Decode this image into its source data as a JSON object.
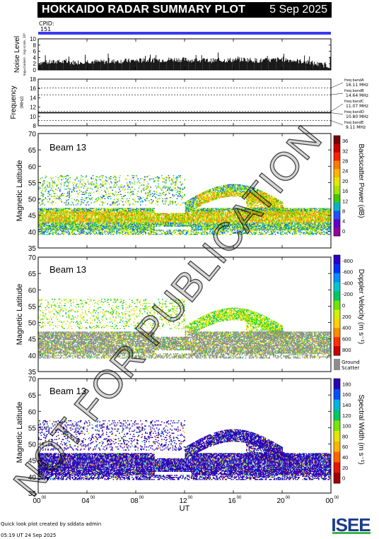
{
  "header": {
    "title": "HOKKAIDO RADAR SUMMARY PLOT",
    "date": "5 Sep 2025"
  },
  "cpid": {
    "label": "CPID:",
    "value": "151"
  },
  "watermark": "NOT FOR PUBLICATION",
  "colors": {
    "ground_scatter": "#8c8c8c",
    "cpid_bar": "#3a3af0",
    "power_scale": [
      "#7a0000",
      "#c80000",
      "#ff2000",
      "#ff7a00",
      "#ffb400",
      "#e6e600",
      "#a8e600",
      "#40c800",
      "#00b4c8",
      "#2050ff",
      "#6000c8",
      "#9600a0"
    ],
    "velocity_scale": [
      "#2a00c8",
      "#0030ff",
      "#0090ff",
      "#00c8c8",
      "#00c864",
      "#6ee600",
      "#d2f000",
      "#ffd200",
      "#ff8c00",
      "#ff3000",
      "#c80000"
    ],
    "width_scale": [
      "#2a00b4",
      "#0050ff",
      "#00b4e6",
      "#00c864",
      "#78e600",
      "#e6e600",
      "#ffb400",
      "#ff6400",
      "#e61400",
      "#a00000"
    ]
  },
  "chart_data": [
    {
      "id": "noise",
      "type": "area",
      "ylabel": "Noise Level",
      "ylabel2": "log₁₀(noise) · log scale, 10²",
      "ylim": [
        0,
        10
      ],
      "yticks": [
        "0",
        "2",
        "4",
        "6",
        "8",
        "10"
      ],
      "x": [
        0,
        1,
        2,
        3,
        4,
        5,
        6,
        7,
        8,
        9,
        10,
        11,
        12,
        13,
        14,
        15,
        16,
        17,
        18,
        19,
        20,
        21,
        22,
        23,
        24
      ],
      "values": [
        2.3,
        2.5,
        2.6,
        2.4,
        2.8,
        2.6,
        2.7,
        2.9,
        3.0,
        3.1,
        3.2,
        3.4,
        3.3,
        3.1,
        3.0,
        3.1,
        3.2,
        3.4,
        3.0,
        3.1,
        3.5,
        3.0,
        2.6,
        1.8,
        1.2
      ]
    },
    {
      "id": "frequency",
      "type": "line",
      "ylabel": "Frequency",
      "yunit": "(MHz)",
      "ylim": [
        8,
        18
      ],
      "yticks": [
        "8",
        "10",
        "12",
        "14",
        "16",
        "18"
      ],
      "bands": [
        {
          "label": "freq bandA",
          "mhz": 16.11,
          "text": "16.11 MHz"
        },
        {
          "label": "freq bandB",
          "mhz": 14.64,
          "text": "14.64 MHz"
        },
        {
          "label": "freq bandC",
          "mhz": 11.07,
          "text": "11.07 MHz"
        },
        {
          "label": "freq bandD",
          "mhz": 10.8,
          "text": "10.80 MHz"
        },
        {
          "label": "freq bandE",
          "mhz": 9.11,
          "text": "9.11 MHz"
        }
      ],
      "operating_mhz": 10.8
    },
    {
      "id": "power",
      "type": "heatmap",
      "beam": "Beam 13",
      "ylabel": "Magnetic Latitude",
      "ylim": [
        35,
        70
      ],
      "yticks": [
        "35",
        "40",
        "45",
        "50",
        "55",
        "60",
        "65",
        "70"
      ],
      "colorbar": {
        "label": "Backscatter Power (dB)",
        "ticks": [
          "0",
          "4",
          "8",
          "12",
          "16",
          "20",
          "24",
          "28",
          "32",
          "36"
        ],
        "range": [
          0,
          40
        ]
      }
    },
    {
      "id": "velocity",
      "type": "heatmap",
      "beam": "Beam 13",
      "ylabel": "Magnetic Latitude",
      "ylim": [
        35,
        70
      ],
      "yticks": [
        "35",
        "40",
        "45",
        "50",
        "55",
        "60",
        "65",
        "70"
      ],
      "colorbar": {
        "label": "Doppler Velocity (m s⁻¹)",
        "ticks": [
          "800",
          "600",
          "400",
          "200",
          "0",
          "-200",
          "-400",
          "-600",
          "-800"
        ],
        "range": [
          -1000,
          1000
        ]
      },
      "ground_scatter_label": [
        "Ground",
        "Scatter"
      ]
    },
    {
      "id": "width",
      "type": "heatmap",
      "beam": "Beam 13",
      "ylabel": "Magnetic Latitude",
      "ylim": [
        35,
        70
      ],
      "yticks": [
        "35",
        "40",
        "45",
        "50",
        "55",
        "60",
        "65",
        "70"
      ],
      "colorbar": {
        "label": "Spectral Width (m s⁻¹)",
        "ticks": [
          "0",
          "20",
          "40",
          "60",
          "80",
          "100",
          "120",
          "140",
          "160",
          "180"
        ],
        "range": [
          0,
          200
        ]
      }
    }
  ],
  "xaxis": {
    "label": "UT",
    "ticks": [
      {
        "h": "00",
        "m": "00"
      },
      {
        "h": "04",
        "m": "00"
      },
      {
        "h": "08",
        "m": "00"
      },
      {
        "h": "12",
        "m": "00"
      },
      {
        "h": "16",
        "m": "00"
      },
      {
        "h": "20",
        "m": "00"
      },
      {
        "h": "00",
        "m": "00"
      }
    ],
    "range_hours": [
      0,
      24
    ]
  },
  "footer": {
    "line1": "Quick look plot created by sddata admin",
    "line2": "05:19 UT 24 Sep 2025",
    "logo": "ISEE"
  }
}
